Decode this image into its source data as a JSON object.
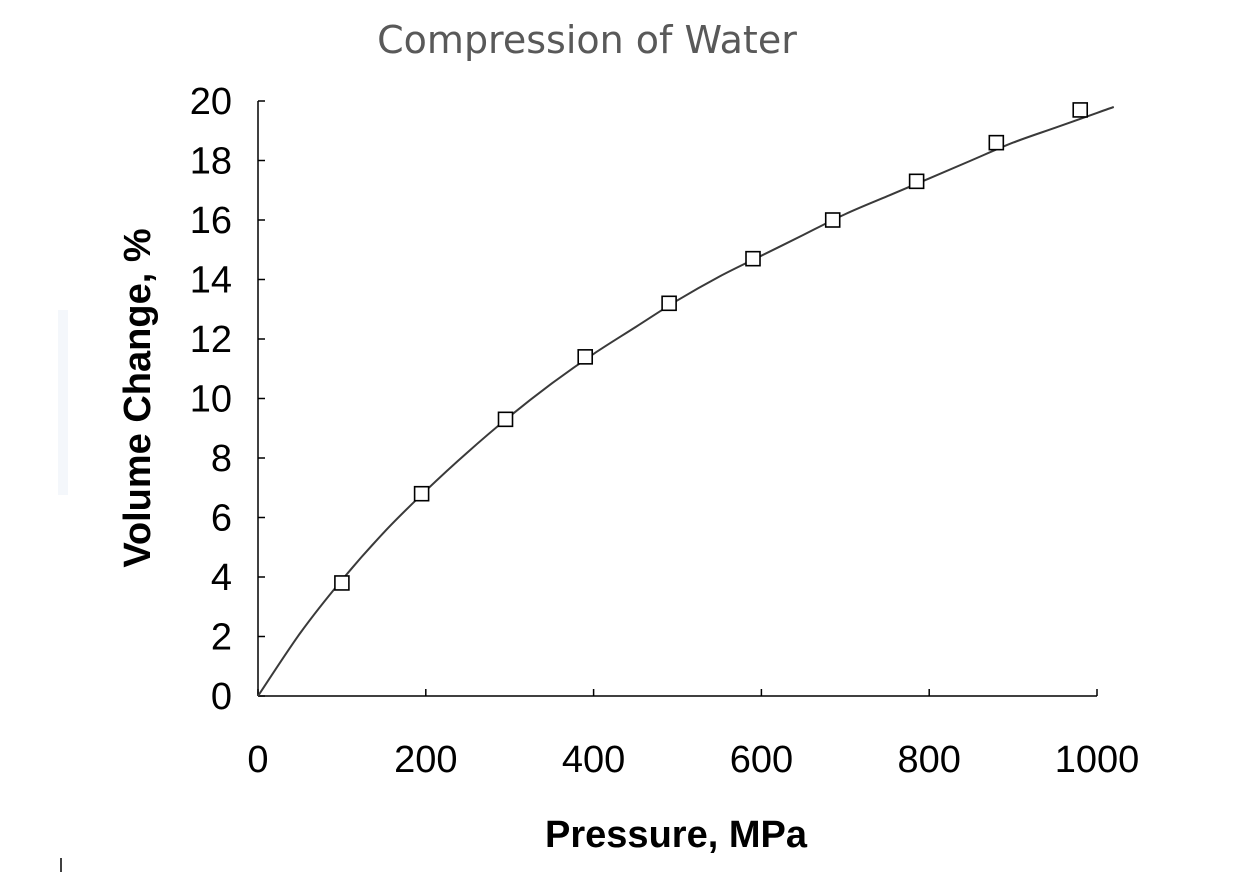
{
  "chart_data": {
    "type": "scatter",
    "title": "Compression of Water",
    "xlabel": "Pressure, MPa",
    "ylabel": "Volume Change, %",
    "xlim": [
      0,
      1000
    ],
    "ylim": [
      0,
      20
    ],
    "xticks": [
      0,
      200,
      400,
      600,
      800,
      1000
    ],
    "yticks": [
      0,
      2,
      4,
      6,
      8,
      10,
      12,
      14,
      16,
      18,
      20
    ],
    "grid": false,
    "legend": "none",
    "series": [
      {
        "marker": "open-square",
        "x": [
          100,
          195,
          295,
          390,
          490,
          590,
          685,
          785,
          880,
          980
        ],
        "y": [
          3.8,
          6.8,
          9.3,
          11.4,
          13.2,
          14.7,
          16.0,
          17.3,
          18.6,
          19.7
        ]
      }
    ],
    "fit_curve": {
      "x": [
        0,
        50,
        100,
        150,
        200,
        250,
        300,
        350,
        400,
        450,
        500,
        550,
        600,
        650,
        700,
        750,
        800,
        850,
        900,
        950,
        1000,
        1020
      ],
      "y": [
        0,
        2.1,
        3.9,
        5.5,
        6.9,
        8.2,
        9.4,
        10.5,
        11.5,
        12.4,
        13.3,
        14.1,
        14.8,
        15.5,
        16.2,
        16.8,
        17.4,
        18.0,
        18.6,
        19.1,
        19.6,
        19.8
      ]
    }
  }
}
